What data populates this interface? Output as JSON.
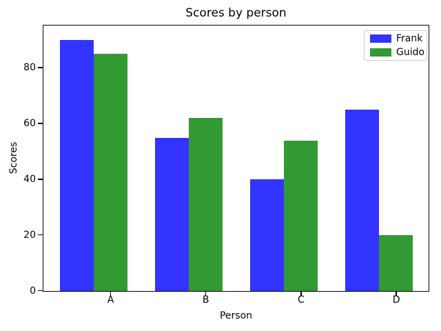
{
  "chart_data": {
    "type": "bar",
    "title": "Scores by person",
    "xlabel": "Person",
    "ylabel": "Scores",
    "categories": [
      "A",
      "B",
      "C",
      "D"
    ],
    "series": [
      {
        "name": "Frank",
        "color": "#3333ff",
        "values": [
          90,
          55,
          40,
          65
        ]
      },
      {
        "name": "Guido",
        "color": "#339933",
        "values": [
          85,
          62,
          54,
          20
        ]
      }
    ],
    "yticks": [
      0,
      20,
      40,
      60,
      80
    ],
    "ylim": [
      0,
      95
    ],
    "grid": false,
    "legend_position": "upper right",
    "background_color": "#ffffff",
    "axis_color": "#000000",
    "legend_border_color": "#cccccc",
    "bar_alignment_note": "category tick labels centered under second (Guido) bar of each pair"
  }
}
